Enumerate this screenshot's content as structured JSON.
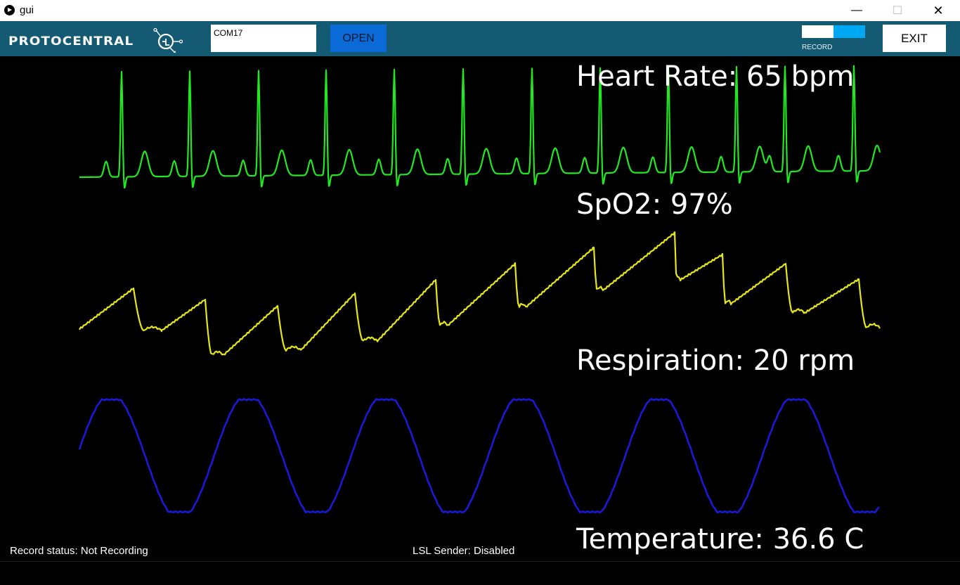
{
  "window": {
    "title": "gui"
  },
  "toolbar": {
    "logo": "PROTOCENTRAL",
    "port_value": "COM17",
    "open_label": "OPEN",
    "record_label": "RECORD",
    "exit_label": "EXIT",
    "record_toggle": {
      "on": true,
      "on_color": "#00a8f3"
    }
  },
  "readouts": {
    "heart_rate": "Heart Rate: 65 bpm",
    "spo2": "SpO2: 97%",
    "respiration": "Respiration: 20 rpm",
    "temperature": "Temperature: 36.6 C"
  },
  "status": {
    "record": "Record status: Not Recording",
    "lsl": "LSL Sender: Disabled"
  },
  "colors": {
    "toolbar_bg": "#145a73",
    "ecg": "#22e822",
    "ppg": "#e6e619",
    "resp": "#1a1ad6",
    "open_button": "#0a6ad8"
  }
}
